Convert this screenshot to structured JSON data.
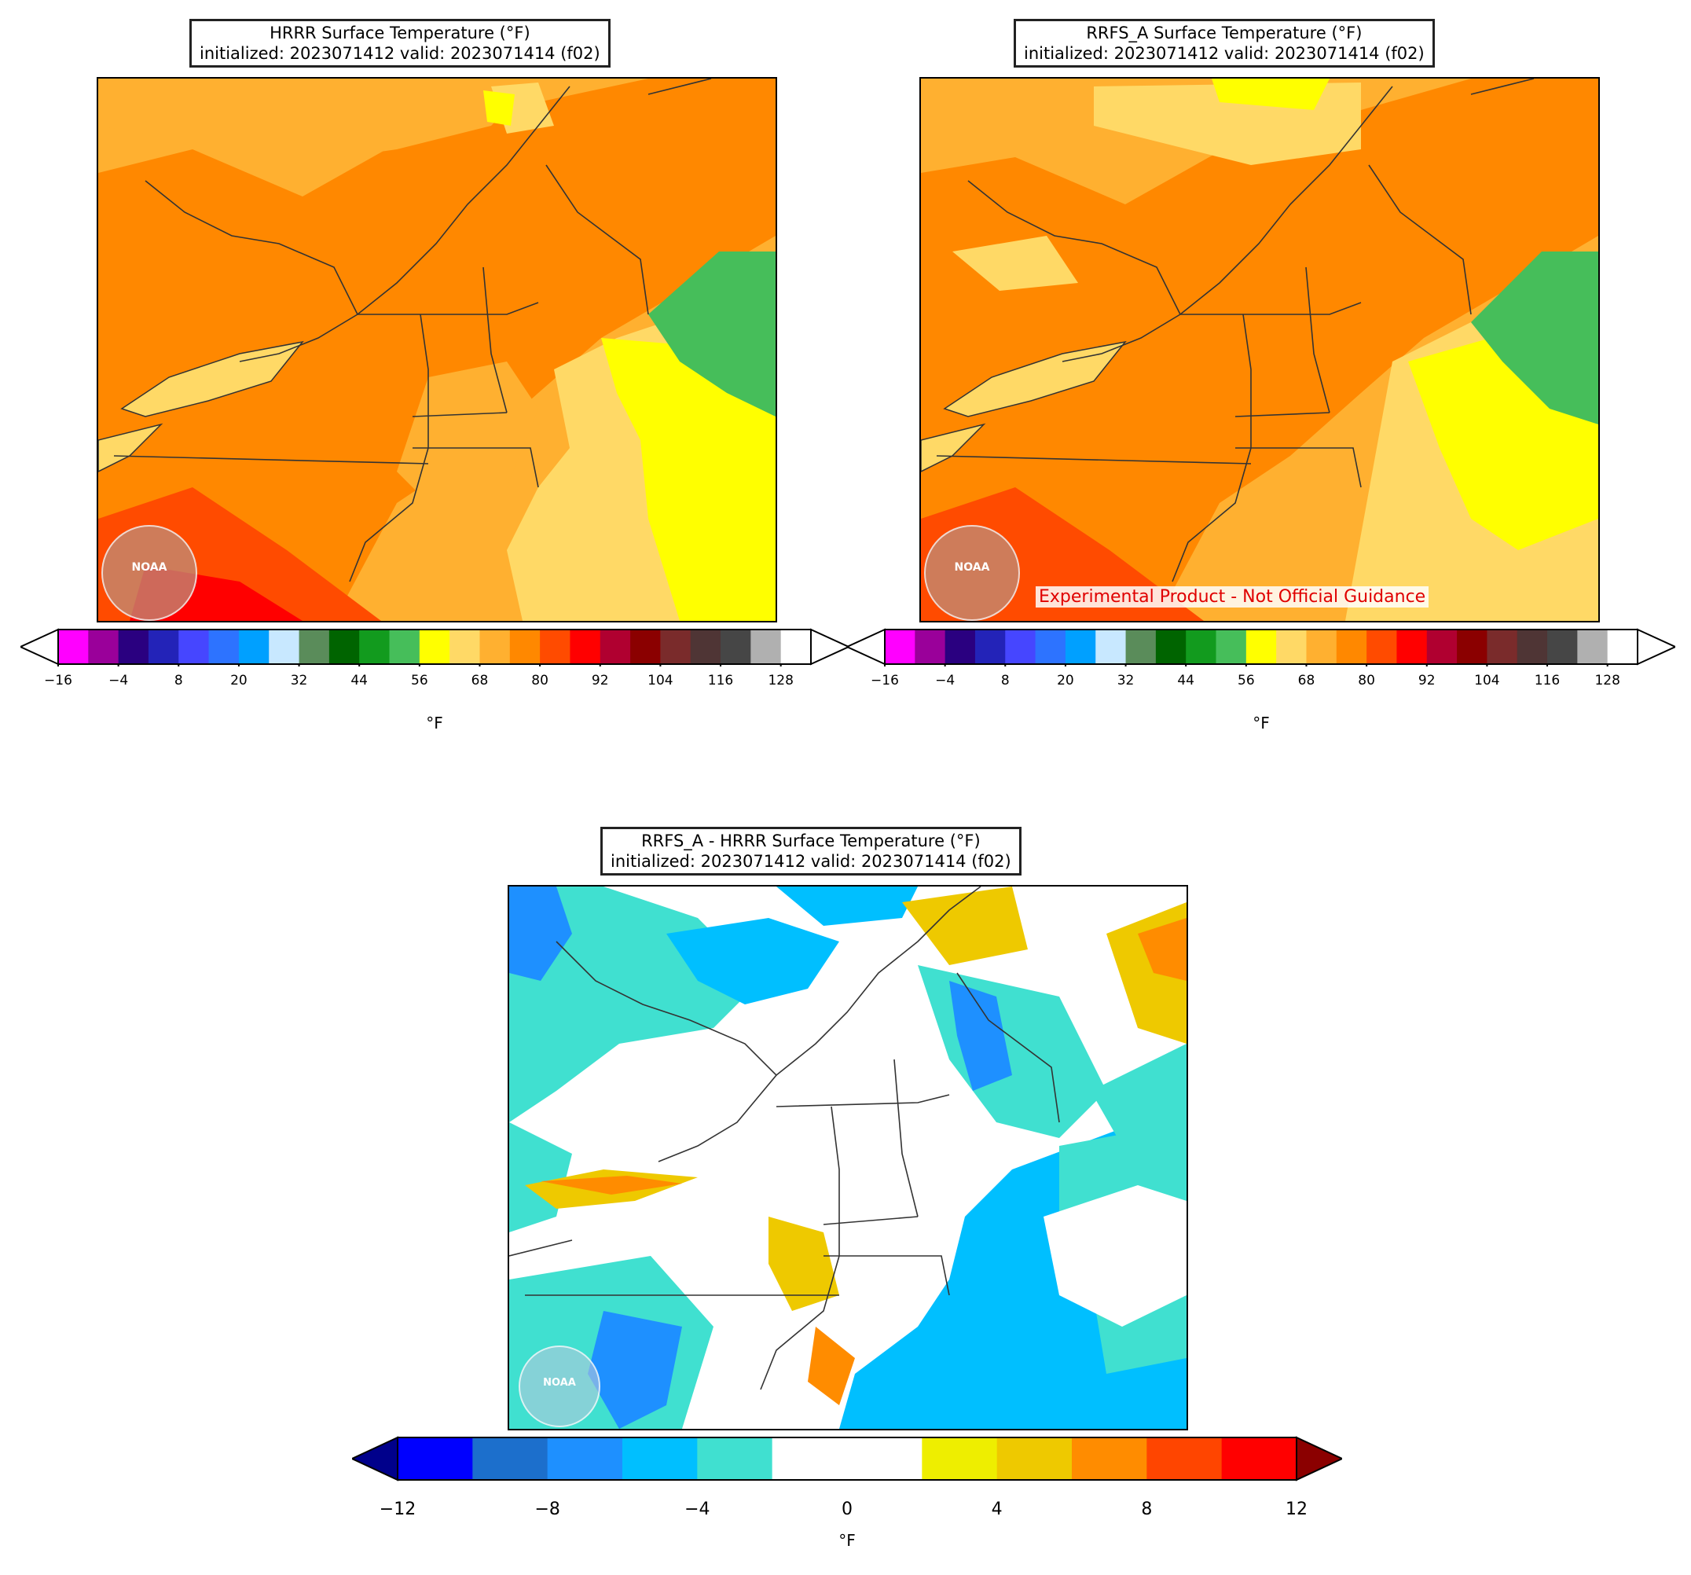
{
  "panels": {
    "hrrr": {
      "title_line1": "HRRR Surface Temperature (°F)",
      "title_line2": "initialized: 2023071412 valid: 2023071414 (f02)"
    },
    "rrfs": {
      "title_line1": "RRFS_A Surface Temperature (°F)",
      "title_line2": "initialized: 2023071412 valid: 2023071414 (f02)",
      "experimental_label": "Experimental Product - Not Official Guidance"
    },
    "diff": {
      "title_line1": "RRFS_A - HRRR Surface Temperature (°F)",
      "title_line2": "initialized: 2023071412 valid: 2023071414 (f02)"
    }
  },
  "temp_colorbar": {
    "unit": "°F",
    "ticks": [
      "−16",
      "−4",
      "8",
      "20",
      "32",
      "44",
      "56",
      "68",
      "80",
      "92",
      "104",
      "116",
      "128"
    ],
    "colors": [
      "#ff00ff",
      "#9a009a",
      "#2a0080",
      "#2323b8",
      "#4646ff",
      "#2d73ff",
      "#00a0ff",
      "#c8e8ff",
      "#5a8c5a",
      "#006400",
      "#129b1e",
      "#46be5a",
      "#ffff00",
      "#ffd966",
      "#ffb030",
      "#ff8800",
      "#ff4b00",
      "#ff0000",
      "#b00030",
      "#8b0000",
      "#7a2b2b",
      "#4f3535",
      "#464646",
      "#b0b0b0",
      "#ffffff"
    ]
  },
  "diff_colorbar": {
    "unit": "°F",
    "ticks": [
      "−12",
      "−8",
      "−4",
      "0",
      "4",
      "8",
      "12"
    ],
    "colors": [
      "#0000ff",
      "#1c6fcc",
      "#1e90ff",
      "#00bfff",
      "#40e0d0",
      "#ffffff",
      "#ffffff",
      "#eeee00",
      "#eec900",
      "#ff8c00",
      "#ff4500",
      "#ff0000"
    ],
    "under_color": "#00008b",
    "over_color": "#8b0000"
  },
  "logos": {
    "noaa_text": "NOAA"
  }
}
